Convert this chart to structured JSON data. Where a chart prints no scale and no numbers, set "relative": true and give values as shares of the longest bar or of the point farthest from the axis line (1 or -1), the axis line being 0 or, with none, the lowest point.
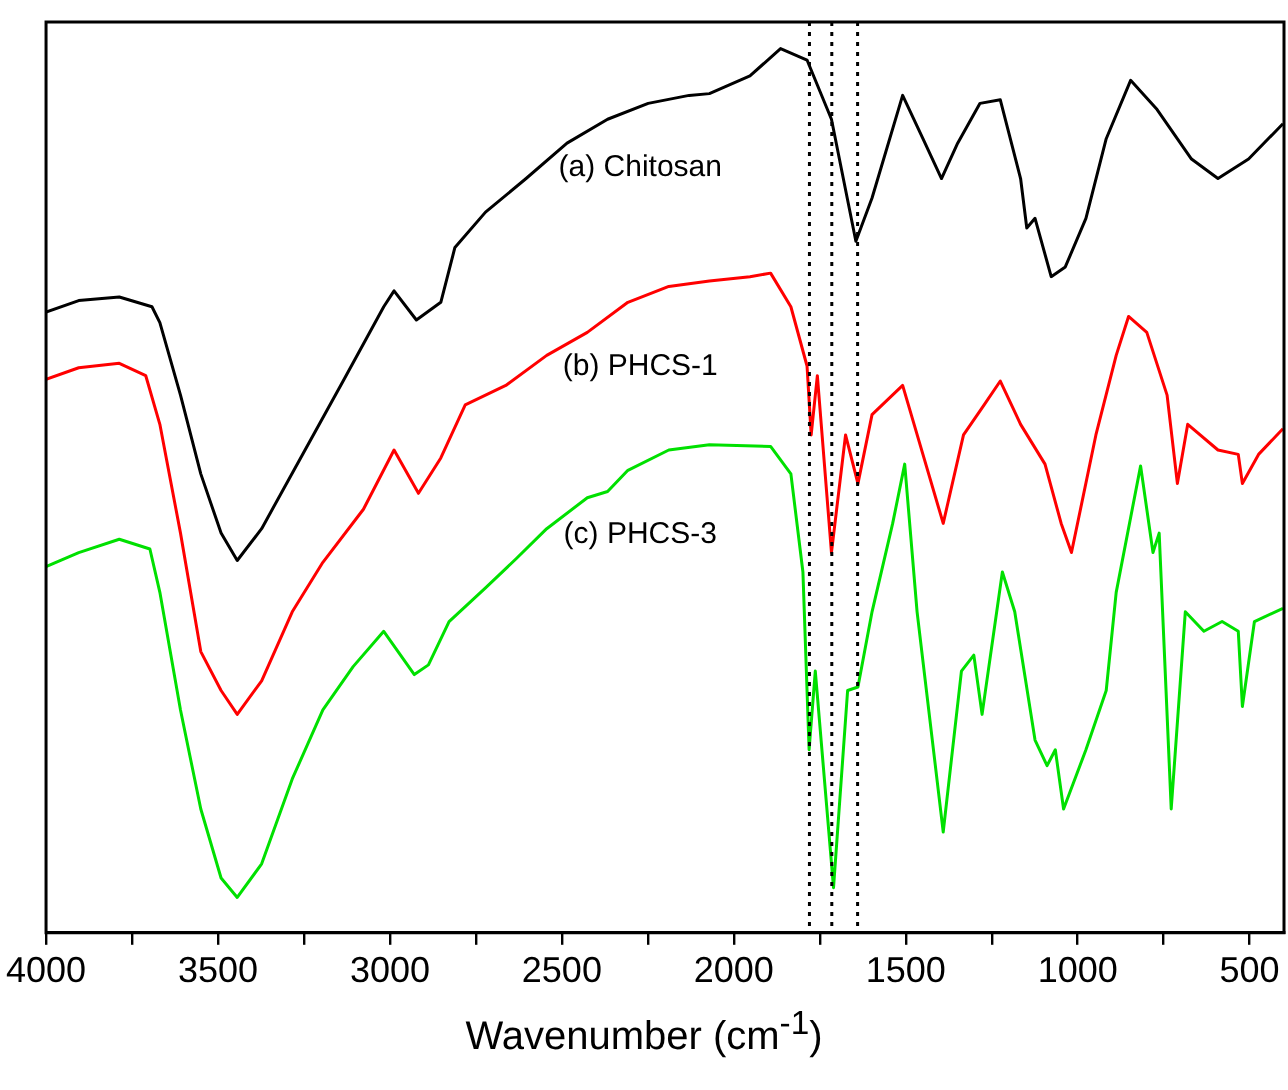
{
  "chart_data": {
    "type": "line",
    "relative": true,
    "xlabel": "Wavenumber (cm$^{-1}$)",
    "xlim": [
      4000,
      400
    ],
    "xticks": [
      4000,
      {
        "value": 3750,
        "label": null
      },
      3500,
      {
        "value": 3250,
        "label": null
      },
      3000,
      {
        "value": 2750,
        "label": null
      },
      2500,
      {
        "value": 2250,
        "label": null
      },
      2000,
      {
        "value": 1750,
        "label": null
      },
      1500,
      {
        "value": 1250,
        "label": null
      },
      1000,
      {
        "value": 750,
        "label": null
      },
      500
    ],
    "grid": false,
    "legend": false,
    "marker": "none",
    "line_style": "solid",
    "ref_lines": [
      {
        "axis": "x",
        "value": 1780,
        "color": "#000000",
        "line_style": "dotted"
      },
      {
        "axis": "x",
        "value": 1715,
        "color": "#000000",
        "line_style": "dotted"
      },
      {
        "axis": "x",
        "value": 1640,
        "color": "#000000",
        "line_style": "dotted"
      }
    ],
    "series": [
      {
        "name": "(a) Chitosan",
        "color": "#000000",
        "x": [
          4000,
          3905,
          3787,
          3692,
          3669,
          3609,
          3550,
          3491,
          3444,
          3373,
          3254,
          3136,
          3018,
          2988,
          2923,
          2852,
          2811,
          2722,
          2604,
          2485,
          2367,
          2249,
          2130,
          2071,
          1953,
          1864,
          1787,
          1716,
          1645,
          1598,
          1509,
          1450,
          1396,
          1349,
          1284,
          1225,
          1166,
          1148,
          1124,
          1077,
          1036,
          976,
          917,
          846,
          769,
          669,
          592,
          503,
          403
        ],
        "values": [
          0.702,
          0.715,
          0.719,
          0.708,
          0.69,
          0.608,
          0.519,
          0.452,
          0.421,
          0.457,
          0.541,
          0.624,
          0.708,
          0.726,
          0.693,
          0.713,
          0.775,
          0.815,
          0.853,
          0.893,
          0.92,
          0.938,
          0.947,
          0.949,
          0.969,
          1,
          0.987,
          0.92,
          0.782,
          0.831,
          0.947,
          0.898,
          0.853,
          0.893,
          0.938,
          0.942,
          0.853,
          0.797,
          0.808,
          0.742,
          0.753,
          0.808,
          0.898,
          0.964,
          0.931,
          0.875,
          0.853,
          0.875,
          0.915
        ]
      },
      {
        "name": "(b) PHCS-1",
        "color": "#ff0000",
        "x": [
          4000,
          3905,
          3787,
          3710,
          3669,
          3609,
          3550,
          3491,
          3444,
          3373,
          3284,
          3195,
          3077,
          2988,
          2917,
          2852,
          2781,
          2663,
          2544,
          2426,
          2308,
          2189,
          2071,
          1953,
          1893,
          1834,
          1787,
          1775,
          1757,
          1716,
          1675,
          1639,
          1598,
          1509,
          1450,
          1391,
          1332,
          1272,
          1225,
          1166,
          1095,
          1048,
          1018,
          947,
          888,
          852,
          799,
          740,
          710,
          680,
          592,
          533,
          521,
          474,
          403
        ],
        "values": [
          0.626,
          0.639,
          0.644,
          0.63,
          0.575,
          0.452,
          0.318,
          0.274,
          0.247,
          0.285,
          0.363,
          0.419,
          0.479,
          0.546,
          0.497,
          0.537,
          0.597,
          0.619,
          0.653,
          0.679,
          0.713,
          0.731,
          0.737,
          0.742,
          0.746,
          0.708,
          0.641,
          0.563,
          0.63,
          0.43,
          0.563,
          0.508,
          0.586,
          0.619,
          0.541,
          0.463,
          0.563,
          0.597,
          0.624,
          0.575,
          0.53,
          0.463,
          0.43,
          0.563,
          0.653,
          0.697,
          0.679,
          0.608,
          0.508,
          0.575,
          0.546,
          0.541,
          0.508,
          0.541,
          0.57
        ]
      },
      {
        "name": "(c) PHCS-3",
        "color": "#00e000",
        "x": [
          4000,
          3905,
          3787,
          3698,
          3669,
          3609,
          3550,
          3491,
          3444,
          3373,
          3284,
          3195,
          3107,
          3018,
          2929,
          2888,
          2828,
          2722,
          2633,
          2544,
          2426,
          2367,
          2308,
          2189,
          2071,
          1893,
          1834,
          1799,
          1781,
          1763,
          1710,
          1669,
          1639,
          1598,
          1538,
          1503,
          1467,
          1391,
          1338,
          1302,
          1278,
          1219,
          1183,
          1124,
          1089,
          1065,
          1041,
          976,
          917,
          888,
          817,
          781,
          763,
          728,
          687,
          633,
          580,
          533,
          521,
          486,
          403
        ],
        "values": [
          0.414,
          0.43,
          0.445,
          0.434,
          0.385,
          0.252,
          0.14,
          0.062,
          0.04,
          0.078,
          0.174,
          0.252,
          0.301,
          0.341,
          0.292,
          0.303,
          0.352,
          0.39,
          0.423,
          0.457,
          0.492,
          0.499,
          0.523,
          0.546,
          0.552,
          0.55,
          0.519,
          0.408,
          0.207,
          0.296,
          0.051,
          0.274,
          0.278,
          0.363,
          0.463,
          0.53,
          0.363,
          0.114,
          0.296,
          0.314,
          0.247,
          0.408,
          0.363,
          0.218,
          0.189,
          0.207,
          0.14,
          0.207,
          0.274,
          0.385,
          0.528,
          0.43,
          0.452,
          0.14,
          0.363,
          0.341,
          0.352,
          0.341,
          0.256,
          0.352,
          0.367
        ]
      }
    ]
  }
}
